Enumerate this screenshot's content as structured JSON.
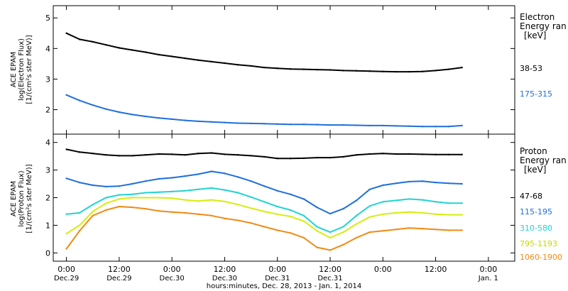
{
  "chart_data": [
    {
      "type": "line",
      "panel": "electron",
      "ylabel_lines": [
        "ACE EPAM",
        "log(Electron Flux)",
        "[1/(cm²s ster MeV)]"
      ],
      "ylim": [
        1.2,
        5.4
      ],
      "yticks": [
        2,
        3,
        4,
        5
      ],
      "legend_title_lines": [
        "Electron",
        "Energy ran"
      ],
      "legend_unit": "[keV]",
      "x": [
        0,
        3,
        6,
        9,
        12,
        15,
        18,
        21,
        24,
        27,
        30,
        33,
        36,
        39,
        42,
        45,
        48,
        51,
        54,
        57,
        60,
        63,
        66,
        69,
        72,
        75,
        78,
        81,
        84,
        87,
        90
      ],
      "series": [
        {
          "name": "38-53",
          "color": "#000000",
          "values": [
            4.5,
            4.3,
            4.22,
            4.12,
            4.02,
            3.95,
            3.88,
            3.8,
            3.74,
            3.68,
            3.62,
            3.57,
            3.52,
            3.47,
            3.43,
            3.38,
            3.35,
            3.33,
            3.32,
            3.31,
            3.3,
            3.28,
            3.27,
            3.26,
            3.25,
            3.24,
            3.24,
            3.25,
            3.28,
            3.32,
            3.38
          ]
        },
        {
          "name": "175-315",
          "color": "#1f6fdc",
          "values": [
            2.48,
            2.3,
            2.15,
            2.02,
            1.92,
            1.84,
            1.78,
            1.73,
            1.69,
            1.65,
            1.62,
            1.6,
            1.58,
            1.56,
            1.55,
            1.54,
            1.53,
            1.52,
            1.52,
            1.51,
            1.5,
            1.5,
            1.49,
            1.48,
            1.48,
            1.47,
            1.46,
            1.45,
            1.45,
            1.45,
            1.48
          ]
        }
      ]
    },
    {
      "type": "line",
      "panel": "proton",
      "ylabel_lines": [
        "ACE EPAM",
        "log(Proton Flux)",
        "[1/(cm²s ster MeV)]"
      ],
      "ylim": [
        -0.3,
        4.3
      ],
      "yticks": [
        0,
        1,
        2,
        3,
        4
      ],
      "legend_title_lines": [
        "Proton",
        "Energy ran"
      ],
      "legend_unit": "[keV]",
      "x": [
        0,
        3,
        6,
        9,
        12,
        15,
        18,
        21,
        24,
        27,
        30,
        33,
        36,
        39,
        42,
        45,
        48,
        51,
        54,
        57,
        60,
        63,
        66,
        69,
        72,
        75,
        78,
        81,
        84,
        87,
        90
      ],
      "series": [
        {
          "name": "47-68",
          "color": "#000000",
          "values": [
            3.75,
            3.65,
            3.6,
            3.55,
            3.52,
            3.52,
            3.55,
            3.58,
            3.57,
            3.55,
            3.6,
            3.62,
            3.57,
            3.55,
            3.52,
            3.48,
            3.42,
            3.42,
            3.43,
            3.45,
            3.45,
            3.48,
            3.55,
            3.58,
            3.6,
            3.58,
            3.58,
            3.57,
            3.56,
            3.56,
            3.56
          ]
        },
        {
          "name": "115-195",
          "color": "#1f6fdc",
          "values": [
            2.7,
            2.55,
            2.45,
            2.4,
            2.42,
            2.5,
            2.6,
            2.68,
            2.72,
            2.78,
            2.85,
            2.95,
            2.88,
            2.75,
            2.6,
            2.42,
            2.25,
            2.12,
            1.95,
            1.65,
            1.42,
            1.6,
            1.9,
            2.3,
            2.45,
            2.52,
            2.58,
            2.6,
            2.55,
            2.52,
            2.5
          ]
        },
        {
          "name": "310-580",
          "color": "#22d3d3",
          "values": [
            1.4,
            1.45,
            1.75,
            2.0,
            2.1,
            2.12,
            2.18,
            2.2,
            2.22,
            2.25,
            2.3,
            2.35,
            2.28,
            2.18,
            2.02,
            1.85,
            1.68,
            1.55,
            1.35,
            0.95,
            0.75,
            0.95,
            1.35,
            1.7,
            1.85,
            1.9,
            1.95,
            1.92,
            1.85,
            1.8,
            1.8
          ]
        },
        {
          "name": "795-1193",
          "color": "#d4ee0f",
          "values": [
            0.7,
            1.0,
            1.5,
            1.8,
            1.95,
            2.0,
            2.0,
            2.0,
            1.98,
            1.92,
            1.88,
            1.92,
            1.86,
            1.75,
            1.62,
            1.5,
            1.4,
            1.32,
            1.15,
            0.8,
            0.55,
            0.75,
            1.05,
            1.3,
            1.4,
            1.45,
            1.48,
            1.45,
            1.4,
            1.38,
            1.38
          ]
        },
        {
          "name": "1060-1900",
          "color": "#f18a14",
          "values": [
            0.15,
            0.8,
            1.35,
            1.55,
            1.68,
            1.65,
            1.6,
            1.52,
            1.48,
            1.45,
            1.4,
            1.35,
            1.25,
            1.18,
            1.08,
            0.95,
            0.82,
            0.72,
            0.55,
            0.2,
            0.1,
            0.3,
            0.55,
            0.75,
            0.8,
            0.85,
            0.9,
            0.88,
            0.85,
            0.82,
            0.82
          ]
        }
      ]
    }
  ],
  "x_axis": {
    "xlim": [
      -3,
      102
    ],
    "tick_positions": [
      0,
      12,
      24,
      36,
      48,
      60,
      72,
      84,
      96
    ],
    "tick_times": [
      "0:00",
      "12:00",
      "0:00",
      "12:00",
      "0:00",
      "12:00",
      "0:00",
      "12:00",
      "0:00"
    ],
    "tick_dates": [
      "Dec.29",
      "Dec.29",
      "Dec.30",
      "Dec.30",
      "Dec.31",
      "Dec.31",
      "",
      "",
      "Jan. 1"
    ],
    "xlabel": "hours:minutes, Dec. 28, 2013 - Jan. 1, 2014"
  }
}
